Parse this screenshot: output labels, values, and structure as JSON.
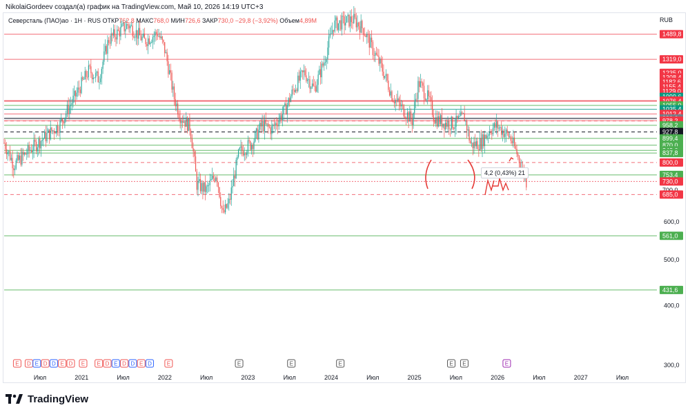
{
  "header": {
    "credit": "NikolaiGordeev создал(а) график на TradingView.com, Май 10, 2026 14:19 UTC+3"
  },
  "legend": {
    "symbol": "Северсталь (ПАО)ао · 1H · RUS",
    "open_label": "ОТКР",
    "open": "762,8",
    "high_label": "МАКС",
    "high": "768,0",
    "low_label": "МИН",
    "low": "726,6",
    "close_label": "ЗАКР",
    "close": "730,0",
    "change": "−29,8 (−3,92%)",
    "volume_label": "Объем",
    "volume": "4,89M"
  },
  "currency": "RUB",
  "measure_label": "4,2 (0,43%) 21",
  "brand": "TradingView",
  "colors": {
    "up": "#26a69a",
    "down": "#ef5350",
    "support": "#4caf50",
    "resistance": "#f23645",
    "dark": "#131722",
    "annotation": "#e53935"
  },
  "chart_data": {
    "type": "candlestick",
    "y_scale": "log",
    "ylim": [
      290,
      1650
    ],
    "y_ticks": [
      300,
      400,
      500,
      600,
      700
    ],
    "x_labels": [
      "Июл",
      "2021",
      "Июл",
      "2022",
      "Июл",
      "2023",
      "Июл",
      "2024",
      "Июл",
      "2025",
      "Июл",
      "2026",
      "Июл",
      "2027",
      "Июл"
    ],
    "price_series": [
      {
        "t": 0.0,
        "p": 880
      },
      {
        "t": 0.015,
        "p": 790
      },
      {
        "t": 0.035,
        "p": 840
      },
      {
        "t": 0.06,
        "p": 900
      },
      {
        "t": 0.085,
        "p": 960
      },
      {
        "t": 0.11,
        "p": 1110
      },
      {
        "t": 0.13,
        "p": 1250
      },
      {
        "t": 0.145,
        "p": 1200
      },
      {
        "t": 0.16,
        "p": 1450
      },
      {
        "t": 0.19,
        "p": 1560
      },
      {
        "t": 0.215,
        "p": 1440
      },
      {
        "t": 0.235,
        "p": 1500
      },
      {
        "t": 0.245,
        "p": 1400
      },
      {
        "t": 0.26,
        "p": 1100
      },
      {
        "t": 0.27,
        "p": 1000
      },
      {
        "t": 0.285,
        "p": 950
      },
      {
        "t": 0.295,
        "p": 720
      },
      {
        "t": 0.31,
        "p": 700
      },
      {
        "t": 0.325,
        "p": 760
      },
      {
        "t": 0.335,
        "p": 620
      },
      {
        "t": 0.345,
        "p": 660
      },
      {
        "t": 0.36,
        "p": 840
      },
      {
        "t": 0.38,
        "p": 880
      },
      {
        "t": 0.395,
        "p": 960
      },
      {
        "t": 0.41,
        "p": 940
      },
      {
        "t": 0.43,
        "p": 1030
      },
      {
        "t": 0.445,
        "p": 1150
      },
      {
        "t": 0.46,
        "p": 1240
      },
      {
        "t": 0.475,
        "p": 1140
      },
      {
        "t": 0.49,
        "p": 1300
      },
      {
        "t": 0.505,
        "p": 1560
      },
      {
        "t": 0.52,
        "p": 1580
      },
      {
        "t": 0.535,
        "p": 1600
      },
      {
        "t": 0.55,
        "p": 1530
      },
      {
        "t": 0.565,
        "p": 1380
      },
      {
        "t": 0.58,
        "p": 1250
      },
      {
        "t": 0.595,
        "p": 1100
      },
      {
        "t": 0.61,
        "p": 1040
      },
      {
        "t": 0.625,
        "p": 980
      },
      {
        "t": 0.635,
        "p": 1180
      },
      {
        "t": 0.65,
        "p": 1090
      },
      {
        "t": 0.66,
        "p": 990
      },
      {
        "t": 0.675,
        "p": 970
      },
      {
        "t": 0.69,
        "p": 965
      },
      {
        "t": 0.705,
        "p": 1000
      },
      {
        "t": 0.715,
        "p": 870
      },
      {
        "t": 0.73,
        "p": 880
      },
      {
        "t": 0.745,
        "p": 940
      },
      {
        "t": 0.755,
        "p": 955
      },
      {
        "t": 0.765,
        "p": 930
      },
      {
        "t": 0.775,
        "p": 905
      },
      {
        "t": 0.785,
        "p": 840
      },
      {
        "t": 0.8,
        "p": 730
      }
    ],
    "levels": [
      {
        "value": 1489.8,
        "label": "1489,8",
        "kind": "resistance",
        "line": "solid"
      },
      {
        "value": 1319.0,
        "label": "1319,0",
        "kind": "resistance",
        "line": "solid"
      },
      {
        "value": 1235.0,
        "label": "1235,0",
        "kind": "resistance",
        "line": "none"
      },
      {
        "value": 1208.4,
        "label": "1208,4",
        "kind": "resistance",
        "line": "none"
      },
      {
        "value": 1182.6,
        "label": "1182,6",
        "kind": "resistance",
        "line": "none"
      },
      {
        "value": 1155.4,
        "label": "1155,4",
        "kind": "resistance",
        "line": "none"
      },
      {
        "value": 1129.0,
        "label": "1129,0",
        "kind": "resistance",
        "line": "none"
      },
      {
        "value": 1099.6,
        "label": "1099,6",
        "kind": "price",
        "line": "none"
      },
      {
        "value": 1080.4,
        "label": "1080,4",
        "kind": "price",
        "line": "none"
      },
      {
        "value": 1080.2,
        "label": "1080,2",
        "kind": "resistance",
        "line": "solid"
      },
      {
        "value": 1079.4,
        "label": "1079,4",
        "kind": "resistance",
        "line": "solid"
      },
      {
        "value": 1076.4,
        "label": "1076,4",
        "kind": "resistance",
        "line": "solid"
      },
      {
        "value": 1055.0,
        "label": "1055,0",
        "kind": "support",
        "line": "solid"
      },
      {
        "value": 1035.4,
        "label": "1035,4",
        "kind": "price",
        "line": "solid"
      },
      {
        "value": 1012.4,
        "label": "1012,4",
        "kind": "resistance",
        "line": "solid"
      },
      {
        "value": 990.6,
        "label": "990,6",
        "kind": "gray",
        "line": "solid"
      },
      {
        "value": 980.0,
        "label": "980,0",
        "kind": "resistance",
        "line": "solid"
      },
      {
        "value": 978.2,
        "label": "978,2",
        "kind": "resistance",
        "line": "dashed"
      },
      {
        "value": 958.2,
        "label": "958,2",
        "kind": "support",
        "line": "solid"
      },
      {
        "value": 927.8,
        "label": "927,8",
        "kind": "current",
        "line": "dashed"
      },
      {
        "value": 899.4,
        "label": "899,4",
        "kind": "support",
        "line": "solid"
      },
      {
        "value": 870.0,
        "label": "870,0",
        "kind": "support",
        "line": "solid"
      },
      {
        "value": 848.6,
        "label": "848,6",
        "kind": "support",
        "line": "solid"
      },
      {
        "value": 837.8,
        "label": "837,8",
        "kind": "support",
        "line": "solid"
      },
      {
        "value": 800.0,
        "label": "800,0",
        "kind": "resistance",
        "line": "dashed"
      },
      {
        "value": 753.4,
        "label": "753,4",
        "kind": "support",
        "line": "solid"
      },
      {
        "value": 730.0,
        "label": "730,0",
        "kind": "resistance",
        "line": "dotted"
      },
      {
        "value": 700.0,
        "label": "700,0",
        "kind": "plain",
        "line": "none"
      },
      {
        "value": 685.0,
        "label": "685,0",
        "kind": "resistance",
        "line": "dashed"
      },
      {
        "value": 561.0,
        "label": "561,0",
        "kind": "support",
        "line": "solid"
      },
      {
        "value": 431.6,
        "label": "431,6",
        "kind": "support",
        "line": "solid"
      }
    ],
    "event_markers": [
      {
        "t": 0.02,
        "type": "E",
        "color": "#ef5350"
      },
      {
        "t": 0.038,
        "type": "D",
        "color": "#ef5350"
      },
      {
        "t": 0.05,
        "type": "E",
        "color": "#2962ff"
      },
      {
        "t": 0.063,
        "type": "D",
        "color": "#ef5350"
      },
      {
        "t": 0.076,
        "type": "D",
        "color": "#2962ff"
      },
      {
        "t": 0.089,
        "type": "E",
        "color": "#ef5350"
      },
      {
        "t": 0.102,
        "type": "D",
        "color": "#ef5350"
      },
      {
        "t": 0.121,
        "type": "E",
        "color": "#ef5350"
      },
      {
        "t": 0.145,
        "type": "E",
        "color": "#ef5350"
      },
      {
        "t": 0.158,
        "type": "D",
        "color": "#ef5350"
      },
      {
        "t": 0.171,
        "type": "E",
        "color": "#2962ff"
      },
      {
        "t": 0.184,
        "type": "D",
        "color": "#ef5350"
      },
      {
        "t": 0.197,
        "type": "D",
        "color": "#2962ff"
      },
      {
        "t": 0.21,
        "type": "E",
        "color": "#ef5350"
      },
      {
        "t": 0.223,
        "type": "D",
        "color": "#2962ff"
      },
      {
        "t": 0.252,
        "type": "E",
        "color": "#ef5350"
      },
      {
        "t": 0.36,
        "type": "E",
        "color": "#555555"
      },
      {
        "t": 0.44,
        "type": "E",
        "color": "#555555"
      },
      {
        "t": 0.515,
        "type": "E",
        "color": "#555555"
      },
      {
        "t": 0.685,
        "type": "E",
        "color": "#555555"
      },
      {
        "t": 0.705,
        "type": "E",
        "color": "#555555"
      },
      {
        "t": 0.77,
        "type": "E",
        "color": "#9c27b0"
      }
    ]
  }
}
